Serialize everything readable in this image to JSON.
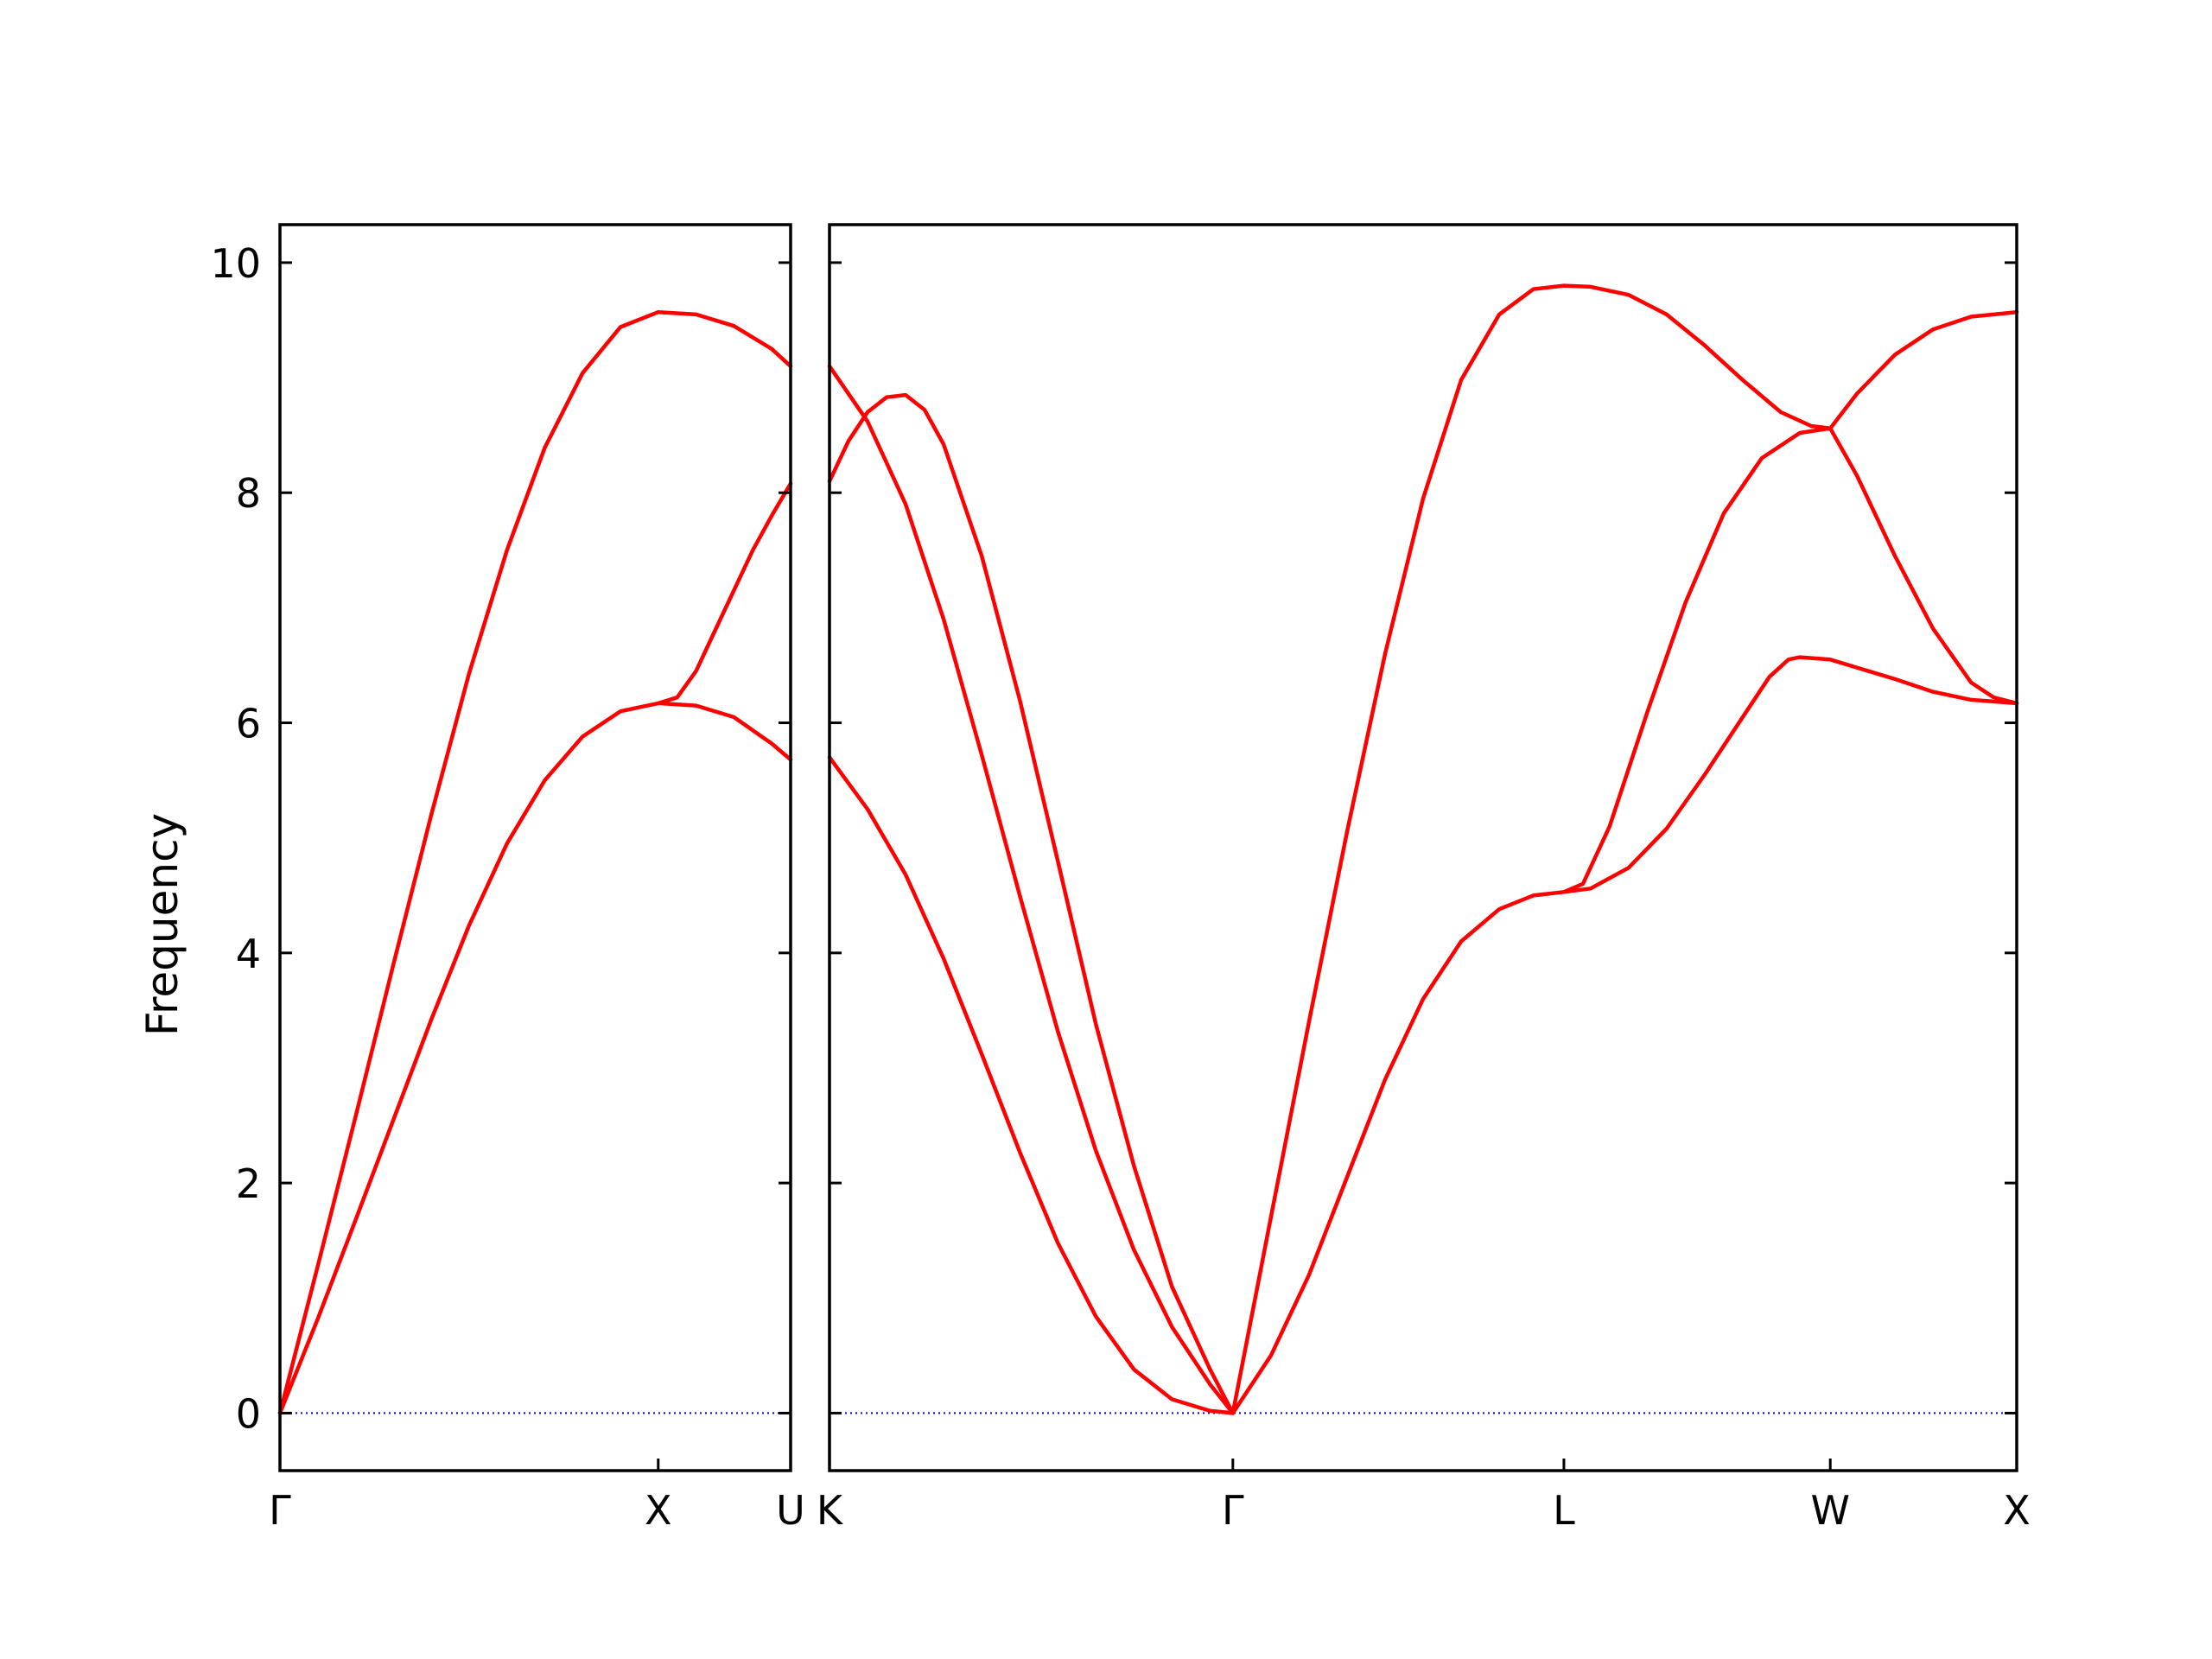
{
  "chart_data": {
    "type": "line",
    "ylabel": "Frequency",
    "ylim": [
      -0.5,
      10.33
    ],
    "yticks": [
      0,
      2,
      4,
      6,
      8,
      10
    ],
    "grid": false,
    "colors": {
      "band": "#ff0000",
      "zero_line": "#0000cc",
      "axes": "#000000"
    },
    "panels": [
      {
        "xlim": [
          0,
          1.35
        ],
        "labels": [
          {
            "text": "Γ",
            "x": 0
          },
          {
            "text": "X",
            "x": 1.0
          },
          {
            "text": "U",
            "x": 1.35
          }
        ],
        "series": [
          {
            "points": [
              [
                0,
                0
              ],
              [
                0.1,
                1.28
              ],
              [
                0.2,
                2.58
              ],
              [
                0.3,
                3.9
              ],
              [
                0.4,
                5.2
              ],
              [
                0.5,
                6.43
              ],
              [
                0.6,
                7.5
              ],
              [
                0.7,
                8.39
              ],
              [
                0.8,
                9.04
              ],
              [
                0.9,
                9.44
              ],
              [
                1.0,
                9.57
              ],
              [
                1.1,
                9.55
              ],
              [
                1.2,
                9.45
              ],
              [
                1.3,
                9.25
              ],
              [
                1.35,
                9.1
              ]
            ]
          },
          {
            "points": [
              [
                0,
                0
              ],
              [
                0.1,
                0.82
              ],
              [
                0.2,
                1.68
              ],
              [
                0.3,
                2.55
              ],
              [
                0.4,
                3.42
              ],
              [
                0.5,
                4.24
              ],
              [
                0.6,
                4.95
              ],
              [
                0.7,
                5.5
              ],
              [
                0.8,
                5.88
              ],
              [
                0.9,
                6.1
              ],
              [
                1.0,
                6.17
              ],
              [
                1.1,
                6.15
              ],
              [
                1.2,
                6.05
              ],
              [
                1.3,
                5.82
              ],
              [
                1.35,
                5.68
              ]
            ]
          },
          {
            "points": [
              [
                1.0,
                6.17
              ],
              [
                1.05,
                6.22
              ],
              [
                1.1,
                6.45
              ],
              [
                1.15,
                6.8
              ],
              [
                1.2,
                7.15
              ],
              [
                1.25,
                7.5
              ],
              [
                1.3,
                7.8
              ],
              [
                1.35,
                8.08
              ]
            ]
          }
        ]
      },
      {
        "xlim": [
          0,
          3.12
        ],
        "labels": [
          {
            "text": "K",
            "x": 0
          },
          {
            "text": "Γ",
            "x": 1.06
          },
          {
            "text": "L",
            "x": 1.93
          },
          {
            "text": "W",
            "x": 2.63
          },
          {
            "text": "X",
            "x": 3.12
          }
        ],
        "series": [
          {
            "points": [
              [
                0,
                9.1
              ],
              [
                0.1,
                8.62
              ],
              [
                0.2,
                7.9
              ],
              [
                0.3,
                6.9
              ],
              [
                0.4,
                5.72
              ],
              [
                0.5,
                4.5
              ],
              [
                0.6,
                3.32
              ],
              [
                0.7,
                2.28
              ],
              [
                0.8,
                1.42
              ],
              [
                0.9,
                0.75
              ],
              [
                1.0,
                0.25
              ],
              [
                1.06,
                0
              ]
            ]
          },
          {
            "points": [
              [
                0,
                8.1
              ],
              [
                0.05,
                8.45
              ],
              [
                0.1,
                8.7
              ],
              [
                0.15,
                8.83
              ],
              [
                0.2,
                8.85
              ],
              [
                0.25,
                8.72
              ],
              [
                0.3,
                8.42
              ],
              [
                0.4,
                7.45
              ],
              [
                0.5,
                6.2
              ],
              [
                0.6,
                4.8
              ],
              [
                0.7,
                3.38
              ],
              [
                0.8,
                2.15
              ],
              [
                0.9,
                1.1
              ],
              [
                1.0,
                0.38
              ],
              [
                1.06,
                0
              ]
            ]
          },
          {
            "points": [
              [
                0,
                5.7
              ],
              [
                0.1,
                5.25
              ],
              [
                0.2,
                4.68
              ],
              [
                0.3,
                3.95
              ],
              [
                0.4,
                3.12
              ],
              [
                0.5,
                2.27
              ],
              [
                0.6,
                1.48
              ],
              [
                0.7,
                0.84
              ],
              [
                0.8,
                0.38
              ],
              [
                0.9,
                0.12
              ],
              [
                1.0,
                0.02
              ],
              [
                1.06,
                0
              ]
            ]
          },
          {
            "points": [
              [
                1.06,
                0
              ],
              [
                1.16,
                1.7
              ],
              [
                1.26,
                3.4
              ],
              [
                1.36,
                5.05
              ],
              [
                1.46,
                6.6
              ],
              [
                1.56,
                7.95
              ],
              [
                1.66,
                8.98
              ],
              [
                1.76,
                9.55
              ],
              [
                1.85,
                9.77
              ],
              [
                1.93,
                9.8
              ],
              [
                2.0,
                9.79
              ],
              [
                2.1,
                9.72
              ],
              [
                2.2,
                9.55
              ],
              [
                2.3,
                9.28
              ],
              [
                2.4,
                8.98
              ],
              [
                2.5,
                8.7
              ],
              [
                2.58,
                8.58
              ],
              [
                2.63,
                8.56
              ],
              [
                2.7,
                8.86
              ],
              [
                2.8,
                9.2
              ],
              [
                2.9,
                9.42
              ],
              [
                3.0,
                9.53
              ],
              [
                3.12,
                9.57
              ]
            ]
          },
          {
            "points": [
              [
                1.06,
                0
              ],
              [
                1.16,
                0.5
              ],
              [
                1.26,
                1.2
              ],
              [
                1.36,
                2.05
              ],
              [
                1.46,
                2.9
              ],
              [
                1.56,
                3.6
              ],
              [
                1.66,
                4.1
              ],
              [
                1.76,
                4.38
              ],
              [
                1.85,
                4.5
              ],
              [
                1.93,
                4.53
              ],
              [
                1.98,
                4.6
              ],
              [
                2.05,
                5.1
              ],
              [
                2.15,
                6.1
              ],
              [
                2.25,
                7.05
              ],
              [
                2.35,
                7.82
              ],
              [
                2.45,
                8.3
              ],
              [
                2.55,
                8.52
              ],
              [
                2.63,
                8.56
              ],
              [
                2.7,
                8.15
              ],
              [
                2.8,
                7.45
              ],
              [
                2.9,
                6.82
              ],
              [
                3.0,
                6.35
              ],
              [
                3.06,
                6.22
              ],
              [
                3.12,
                6.17
              ]
            ]
          },
          {
            "points": [
              [
                1.93,
                4.53
              ],
              [
                2.0,
                4.56
              ],
              [
                2.1,
                4.74
              ],
              [
                2.2,
                5.08
              ],
              [
                2.3,
                5.55
              ],
              [
                2.4,
                6.05
              ],
              [
                2.47,
                6.4
              ],
              [
                2.52,
                6.55
              ],
              [
                2.55,
                6.57
              ],
              [
                2.63,
                6.55
              ],
              [
                2.7,
                6.48
              ],
              [
                2.8,
                6.38
              ],
              [
                2.9,
                6.27
              ],
              [
                3.0,
                6.2
              ],
              [
                3.12,
                6.17
              ]
            ]
          }
        ]
      }
    ]
  }
}
